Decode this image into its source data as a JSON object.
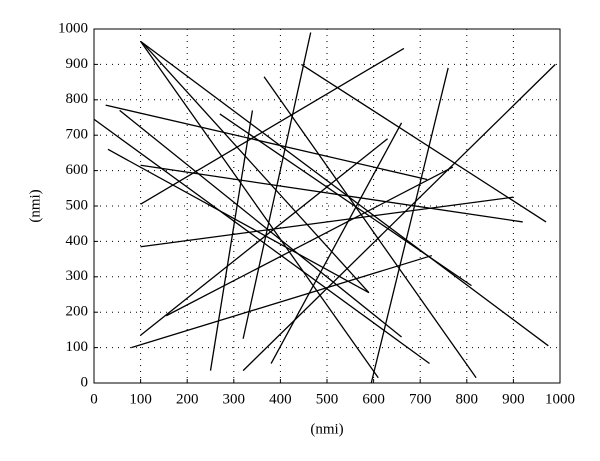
{
  "chart_data": {
    "type": "line",
    "x_label": "(nmi)",
    "y_label": "(nmi)",
    "xlim": [
      0,
      1000
    ],
    "ylim": [
      0,
      1000
    ],
    "xticks": [
      0,
      100,
      200,
      300,
      400,
      500,
      600,
      700,
      800,
      900,
      1000
    ],
    "yticks": [
      0,
      100,
      200,
      300,
      400,
      500,
      600,
      700,
      800,
      900,
      1000
    ],
    "grid": true,
    "series": [
      {
        "color": "#000000",
        "x": [
          100,
          610
        ],
        "values": [
          965,
          15
        ]
      },
      {
        "color": "#000000",
        "x": [
          105,
          590
        ],
        "values": [
          960,
          255
        ]
      },
      {
        "color": "#000000",
        "x": [
          100,
          975
        ],
        "values": [
          965,
          105
        ]
      },
      {
        "color": "#000000",
        "x": [
          0,
          720
        ],
        "values": [
          745,
          55
        ]
      },
      {
        "color": "#000000",
        "x": [
          25,
          715
        ],
        "values": [
          785,
          575
        ]
      },
      {
        "color": "#000000",
        "x": [
          55,
          660
        ],
        "values": [
          770,
          130
        ]
      },
      {
        "color": "#000000",
        "x": [
          30,
          590
        ],
        "values": [
          660,
          255
        ]
      },
      {
        "color": "#000000",
        "x": [
          100,
          920
        ],
        "values": [
          615,
          455
        ]
      },
      {
        "color": "#000000",
        "x": [
          100,
          900
        ],
        "values": [
          385,
          525
        ]
      },
      {
        "color": "#000000",
        "x": [
          80,
          725
        ],
        "values": [
          100,
          360
        ]
      },
      {
        "color": "#000000",
        "x": [
          100,
          630
        ],
        "values": [
          135,
          690
        ]
      },
      {
        "color": "#000000",
        "x": [
          100,
          665
        ],
        "values": [
          505,
          945
        ]
      },
      {
        "color": "#000000",
        "x": [
          155,
          770
        ],
        "values": [
          190,
          610
        ]
      },
      {
        "color": "#000000",
        "x": [
          250,
          340
        ],
        "values": [
          35,
          770
        ]
      },
      {
        "color": "#000000",
        "x": [
          320,
          465
        ],
        "values": [
          125,
          990
        ]
      },
      {
        "color": "#000000",
        "x": [
          270,
          810
        ],
        "values": [
          760,
          275
        ]
      },
      {
        "color": "#000000",
        "x": [
          445,
          970
        ],
        "values": [
          900,
          455
        ]
      },
      {
        "color": "#000000",
        "x": [
          365,
          820
        ],
        "values": [
          865,
          15
        ]
      },
      {
        "color": "#000000",
        "x": [
          320,
          990
        ],
        "values": [
          35,
          900
        ]
      },
      {
        "color": "#000000",
        "x": [
          380,
          660
        ],
        "values": [
          55,
          735
        ]
      },
      {
        "color": "#000000",
        "x": [
          595,
          760
        ],
        "values": [
          0,
          890
        ]
      }
    ]
  }
}
